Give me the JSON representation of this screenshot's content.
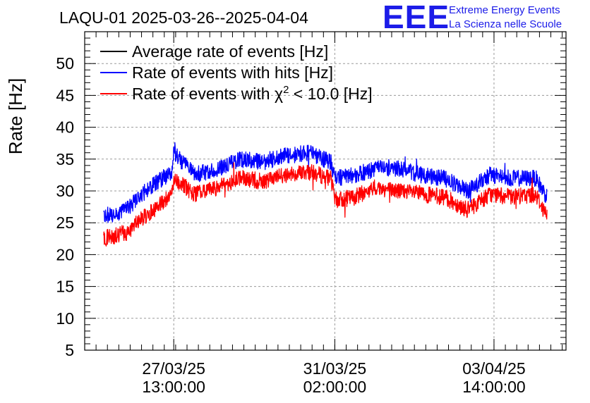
{
  "header": {
    "title": "LAQU-01 2025-03-26--2025-04-04",
    "logo_mark": "EEE",
    "logo_line1": "Extreme Energy Events",
    "logo_line2": "La Scienza nelle Scuole"
  },
  "chart_data": {
    "type": "line",
    "title": "LAQU-01 2025-03-26--2025-04-04",
    "ylabel": "Rate [Hz]",
    "xlabel": "",
    "ylim": [
      5,
      55
    ],
    "y_ticks": [
      5,
      10,
      15,
      20,
      25,
      30,
      35,
      40,
      45,
      50
    ],
    "x_range_days": [
      "2025-03-25 14:00",
      "2025-04-05 04:00"
    ],
    "x_ticks": [
      {
        "date": "27/03/25",
        "time": "13:00:00",
        "x": "2025-03-27 13:00"
      },
      {
        "date": "31/03/25",
        "time": "02:00:00",
        "x": "2025-03-31 02:00"
      },
      {
        "date": "03/04/25",
        "time": "14:00:00",
        "x": "2025-04-03 14:00"
      }
    ],
    "grid": true,
    "legend_position": "top-left",
    "series": [
      {
        "name": "Average rate of events [Hz]",
        "color": "#000000",
        "x": [],
        "values": []
      },
      {
        "name": "Rate of events with hits [Hz]",
        "color": "#0000ff",
        "x": [
          "2025-03-26 00:00",
          "2025-03-26 12:00",
          "2025-03-27 00:00",
          "2025-03-27 12:00",
          "2025-03-27 13:00",
          "2025-03-28 00:00",
          "2025-03-28 12:00",
          "2025-03-29 00:00",
          "2025-03-29 12:00",
          "2025-03-30 00:00",
          "2025-03-30 12:00",
          "2025-03-31 00:00",
          "2025-03-31 02:00",
          "2025-03-31 12:00",
          "2025-04-01 00:00",
          "2025-04-01 12:00",
          "2025-04-02 00:00",
          "2025-04-02 12:00",
          "2025-04-03 00:00",
          "2025-04-03 12:00",
          "2025-04-04 00:00",
          "2025-04-04 12:00",
          "2025-04-04 18:00"
        ],
        "values": [
          26,
          27,
          30.5,
          33,
          36,
          32.5,
          33.5,
          35,
          34.5,
          35.5,
          36,
          34.5,
          32,
          32.5,
          33.5,
          33.5,
          32.5,
          32,
          30,
          32.5,
          32,
          32,
          29
        ]
      },
      {
        "name": "Rate of events with χ² < 10.0 [Hz]",
        "color": "#ff0000",
        "x": [
          "2025-03-26 00:00",
          "2025-03-26 12:00",
          "2025-03-27 00:00",
          "2025-03-27 12:00",
          "2025-03-27 13:00",
          "2025-03-28 00:00",
          "2025-03-28 12:00",
          "2025-03-29 00:00",
          "2025-03-29 12:00",
          "2025-03-30 00:00",
          "2025-03-30 12:00",
          "2025-03-31 00:00",
          "2025-03-31 02:00",
          "2025-03-31 12:00",
          "2025-04-01 00:00",
          "2025-04-01 12:00",
          "2025-04-02 00:00",
          "2025-04-02 12:00",
          "2025-04-03 00:00",
          "2025-04-03 12:00",
          "2025-04-04 00:00",
          "2025-04-04 12:00",
          "2025-04-04 18:00"
        ],
        "values": [
          22.5,
          23.5,
          26.5,
          29.5,
          32,
          29.5,
          30.5,
          32,
          31.5,
          32.5,
          33,
          32,
          28.5,
          29,
          30.5,
          30,
          29.5,
          29,
          27,
          29.5,
          29,
          29.5,
          26
        ]
      }
    ]
  },
  "legend": {
    "entries": [
      {
        "label": "Average rate of events [Hz]",
        "color": "#000000"
      },
      {
        "label": "Rate of events with hits [Hz]",
        "color": "#0000ff"
      },
      {
        "label_pre": "Rate of events with ",
        "label_chi": "χ",
        "label_sup": "2",
        "label_post": " < 10.0 [Hz]",
        "color": "#ff0000"
      }
    ]
  }
}
